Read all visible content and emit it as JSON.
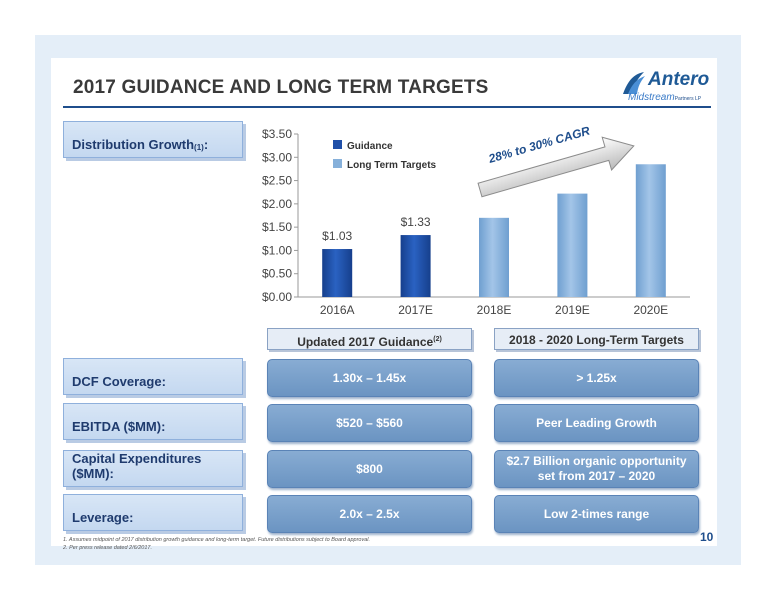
{
  "slide": {
    "title": "2017 GUIDANCE AND LONG TERM TARGETS",
    "logo": {
      "name": "Antero",
      "subtitle": "Midstream",
      "subtitle_small": "Partners LP"
    },
    "page_number": "10"
  },
  "rows": {
    "distribution_label": "Distribution Growth",
    "distribution_sup": "(1)",
    "distribution_suffix": ":",
    "dcf_label": "DCF Coverage:",
    "ebitda_label": "EBITDA ($MM):",
    "capex_label": "Capital Expenditures ($MM):",
    "leverage_label": "Leverage:"
  },
  "columns": {
    "guidance_header": "Updated 2017 Guidance",
    "guidance_header_sup": "(2)",
    "long_term_header": "2018 - 2020 Long-Term Targets"
  },
  "values": {
    "dcf_guidance": "1.30x – 1.45x",
    "dcf_long_term": "> 1.25x",
    "ebitda_guidance": "$520 – $560",
    "ebitda_long_term": "Peer Leading Growth",
    "capex_guidance": "$800",
    "capex_long_term_line1": "$2.7 Billion organic opportunity",
    "capex_long_term_line2": "set from 2017 – 2020",
    "leverage_guidance": "2.0x – 2.5x",
    "leverage_long_term": "Low 2-times range"
  },
  "footnotes": {
    "note1": "1.  Assumes midpoint of 2017 distribution growth guidance and long-term target. Future distributions subject to Board approval.",
    "note2": "2.  Per press release dated 2/6/2017."
  },
  "colors": {
    "guidance": "#1f4fa8",
    "long_term": "#86b0da",
    "title_rule": "#1f4e8c"
  },
  "chart_data": {
    "type": "bar",
    "categories": [
      "2016A",
      "2017E",
      "2018E",
      "2019E",
      "2020E"
    ],
    "series": [
      {
        "name": "Guidance",
        "values": [
          1.03,
          1.33,
          null,
          null,
          null
        ]
      },
      {
        "name": "Long Term Targets",
        "values": [
          null,
          null,
          1.7,
          2.22,
          2.85
        ]
      }
    ],
    "data_labels": [
      "$1.03",
      "$1.33",
      null,
      null,
      null
    ],
    "y_ticks": [
      "$0.00",
      "$0.50",
      "$1.00",
      "$1.50",
      "$2.00",
      "$2.50",
      "$3.00",
      "$3.50"
    ],
    "ylim": [
      0,
      3.5
    ],
    "legend_position": "top-left",
    "annotation": "28% to 30% CAGR",
    "grid": false
  }
}
